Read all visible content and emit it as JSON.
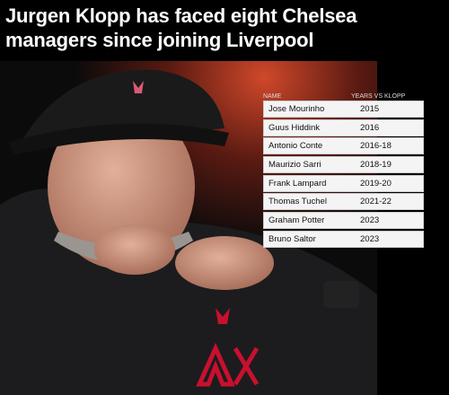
{
  "header": {
    "title": "Jurgen Klopp has faced eight Chelsea managers since joining Liverpool"
  },
  "table": {
    "columns": [
      "NAME",
      "YEARS VS KLOPP"
    ],
    "rows": [
      [
        "Jose Mourinho",
        "2015"
      ],
      [
        "Guus Hiddink",
        "2016"
      ],
      [
        "Antonio Conte",
        "2016-18"
      ],
      [
        "Maurizio Sarri",
        "2018-19"
      ],
      [
        "Frank Lampard",
        "2019-20"
      ],
      [
        "Thomas Tuchel",
        "2021-22"
      ],
      [
        "Graham Potter",
        "2023"
      ],
      [
        "Bruno Saltor",
        "2023"
      ]
    ]
  }
}
